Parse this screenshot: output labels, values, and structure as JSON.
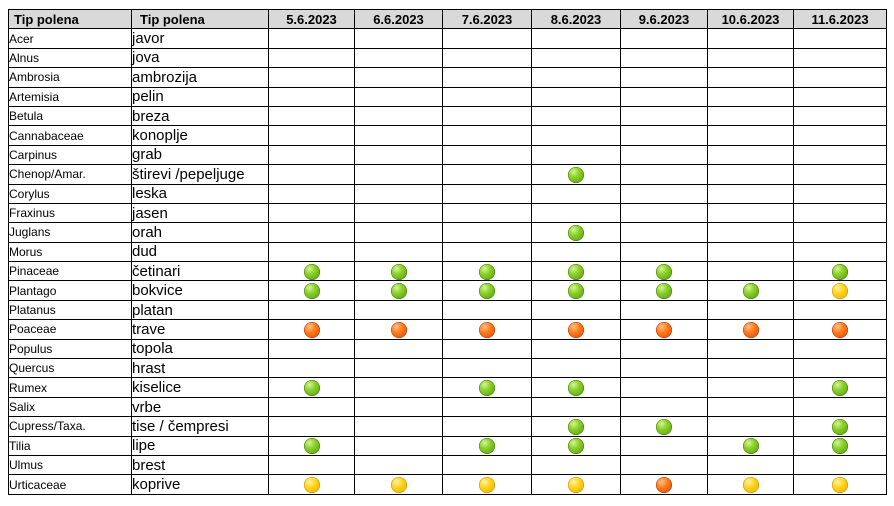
{
  "headers": {
    "latin": "Tip polena",
    "local": "Tip polena",
    "dates": [
      "5.6.2023",
      "6.6.2023",
      "7.6.2023",
      "8.6.2023",
      "9.6.2023",
      "10.6.2023",
      "11.6.2023"
    ]
  },
  "level_colors": {
    "low": "#6cbf1c",
    "moderate": "#ffcc00",
    "high": "#ff6a10"
  },
  "rows": [
    {
      "latin": "Acer",
      "local": "javor",
      "levels": [
        "",
        "",
        "",
        "",
        "",
        "",
        ""
      ]
    },
    {
      "latin": "Alnus",
      "local": "jova",
      "levels": [
        "",
        "",
        "",
        "",
        "",
        "",
        ""
      ]
    },
    {
      "latin": "Ambrosia",
      "local": "ambrozija",
      "levels": [
        "",
        "",
        "",
        "",
        "",
        "",
        ""
      ]
    },
    {
      "latin": "Artemisia",
      "local": "pelin",
      "levels": [
        "",
        "",
        "",
        "",
        "",
        "",
        ""
      ]
    },
    {
      "latin": "Betula",
      "local": "breza",
      "levels": [
        "",
        "",
        "",
        "",
        "",
        "",
        ""
      ]
    },
    {
      "latin": "Cannabaceae",
      "local": "konoplje",
      "levels": [
        "",
        "",
        "",
        "",
        "",
        "",
        ""
      ]
    },
    {
      "latin": "Carpinus",
      "local": "grab",
      "levels": [
        "",
        "",
        "",
        "",
        "",
        "",
        ""
      ]
    },
    {
      "latin": "Chenop/Amar.",
      "local": "štirevi /pepeljuge",
      "levels": [
        "",
        "",
        "",
        "low",
        "",
        "",
        ""
      ]
    },
    {
      "latin": "Corylus",
      "local": "leska",
      "levels": [
        "",
        "",
        "",
        "",
        "",
        "",
        ""
      ]
    },
    {
      "latin": "Fraxinus",
      "local": "jasen",
      "levels": [
        "",
        "",
        "",
        "",
        "",
        "",
        ""
      ]
    },
    {
      "latin": "Juglans",
      "local": "orah",
      "levels": [
        "",
        "",
        "",
        "low",
        "",
        "",
        ""
      ]
    },
    {
      "latin": "Morus",
      "local": "dud",
      "levels": [
        "",
        "",
        "",
        "",
        "",
        "",
        ""
      ]
    },
    {
      "latin": "Pinaceae",
      "local": "četinari",
      "levels": [
        "low",
        "low",
        "low",
        "low",
        "low",
        "",
        "low"
      ]
    },
    {
      "latin": "Plantago",
      "local": "bokvice",
      "levels": [
        "low",
        "low",
        "low",
        "low",
        "low",
        "low",
        "moderate"
      ]
    },
    {
      "latin": "Platanus",
      "local": "platan",
      "levels": [
        "",
        "",
        "",
        "",
        "",
        "",
        ""
      ]
    },
    {
      "latin": "Poaceae",
      "local": "trave",
      "levels": [
        "high",
        "high",
        "high",
        "high",
        "high",
        "high",
        "high"
      ]
    },
    {
      "latin": "Populus",
      "local": "topola",
      "levels": [
        "",
        "",
        "",
        "",
        "",
        "",
        ""
      ]
    },
    {
      "latin": "Quercus",
      "local": "hrast",
      "levels": [
        "",
        "",
        "",
        "",
        "",
        "",
        ""
      ]
    },
    {
      "latin": "Rumex",
      "local": "kiselice",
      "levels": [
        "low",
        "",
        "low",
        "low",
        "",
        "",
        "low"
      ]
    },
    {
      "latin": "Salix",
      "local": "vrbe",
      "levels": [
        "",
        "",
        "",
        "",
        "",
        "",
        ""
      ]
    },
    {
      "latin": "Cupress/Taxa.",
      "local": "tise / čempresi",
      "levels": [
        "",
        "",
        "",
        "low",
        "low",
        "",
        "low"
      ]
    },
    {
      "latin": "Tilia",
      "local": "lipe",
      "levels": [
        "low",
        "",
        "low",
        "low",
        "",
        "low",
        "low"
      ]
    },
    {
      "latin": "Ulmus",
      "local": "brest",
      "levels": [
        "",
        "",
        "",
        "",
        "",
        "",
        ""
      ]
    },
    {
      "latin": "Urticaceae",
      "local": "koprive",
      "levels": [
        "moderate",
        "moderate",
        "moderate",
        "moderate",
        "high",
        "moderate",
        "moderate"
      ]
    }
  ]
}
